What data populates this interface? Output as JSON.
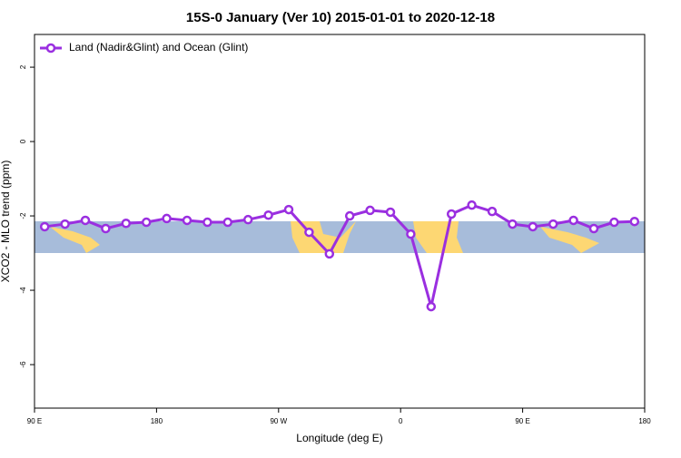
{
  "chart_data": {
    "type": "line",
    "title": "15S-0 January (Ver 10)   2015-01-01 to 2020-12-18",
    "x_label": "Longitude (deg E)",
    "y_label": "XCO2 - MLO trend (ppm)",
    "xlim": [
      90,
      540
    ],
    "ylim": [
      -7.17,
      2.88
    ],
    "xticks": [
      {
        "value": 90,
        "label": "90 E"
      },
      {
        "value": 180,
        "label": "180"
      },
      {
        "value": 270,
        "label": "90 W"
      },
      {
        "value": 360,
        "label": "0"
      },
      {
        "value": 450,
        "label": "90 E"
      },
      {
        "value": 540,
        "label": "180"
      }
    ],
    "yticks": [
      -6,
      -4,
      -2,
      0,
      2
    ],
    "legend": "top-left",
    "x": [
      97.5,
      112.5,
      127.5,
      142.5,
      157.5,
      172.5,
      187.5,
      202.5,
      217.5,
      232.5,
      247.5,
      262.5,
      277.5,
      292.5,
      307.5,
      322.5,
      337.5,
      352.5,
      367.5,
      382.5,
      397.5,
      412.5,
      427.5,
      442.5,
      457.5,
      472.5,
      487.5,
      502.5,
      517.5,
      532.5
    ],
    "series": [
      {
        "name": "Land (Nadir&Glint) and Ocean (Glint)",
        "color": "#9a2fe0",
        "values": [
          -2.29,
          -2.22,
          -2.12,
          -2.34,
          -2.2,
          -2.17,
          -2.07,
          -2.12,
          -2.17,
          -2.17,
          -2.1,
          -1.98,
          -1.83,
          -2.44,
          -3.02,
          -2.0,
          -1.85,
          -1.9,
          -2.49,
          -4.44,
          -1.95,
          -1.71,
          -1.88,
          -2.22,
          -2.29,
          -2.22,
          -2.12,
          -2.34,
          -2.17,
          -2.15
        ]
      }
    ]
  }
}
